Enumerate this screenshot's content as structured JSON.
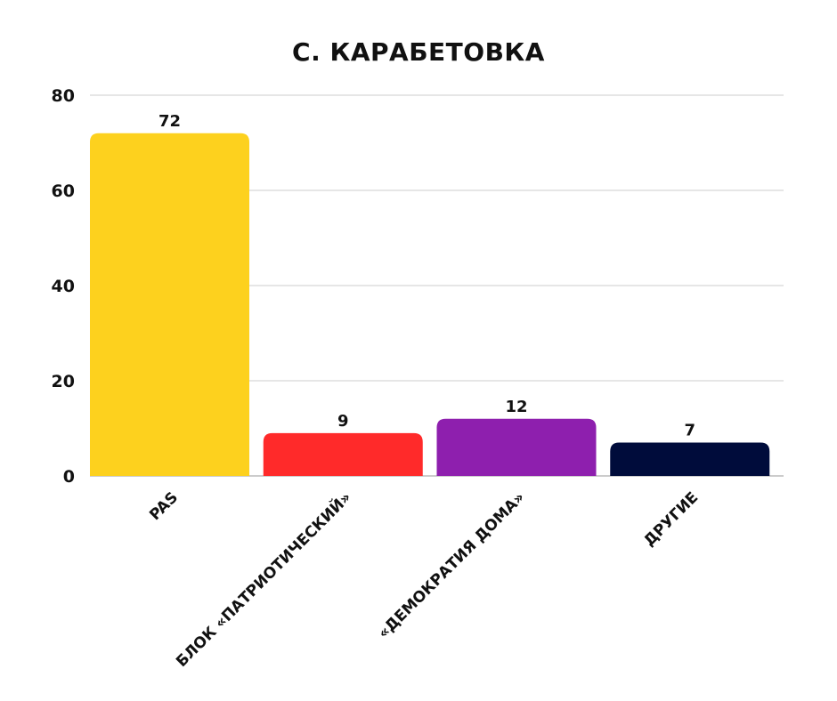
{
  "chart_data": {
    "type": "bar",
    "title": "С. КАРАБЕТОВКА",
    "xlabel": "",
    "ylabel": "",
    "categories": [
      "PAS",
      "БЛОК «ПАТРИОТИЧЕСКИЙ»",
      "«ДЕМОКРАТИЯ ДОМА»",
      "ДРУГИЕ"
    ],
    "values": [
      72,
      9,
      12,
      7
    ],
    "value_labels": [
      "72",
      "9",
      "12",
      "7"
    ],
    "colors": [
      "#FDD11E",
      "#FF2A2A",
      "#8E1FAE",
      "#000C3B"
    ],
    "ylim": [
      0,
      80
    ],
    "yticks": [
      0,
      20,
      40,
      60,
      80
    ],
    "ytick_labels": [
      "0",
      "20",
      "40",
      "60",
      "80"
    ],
    "grid": true,
    "legend": "none"
  }
}
